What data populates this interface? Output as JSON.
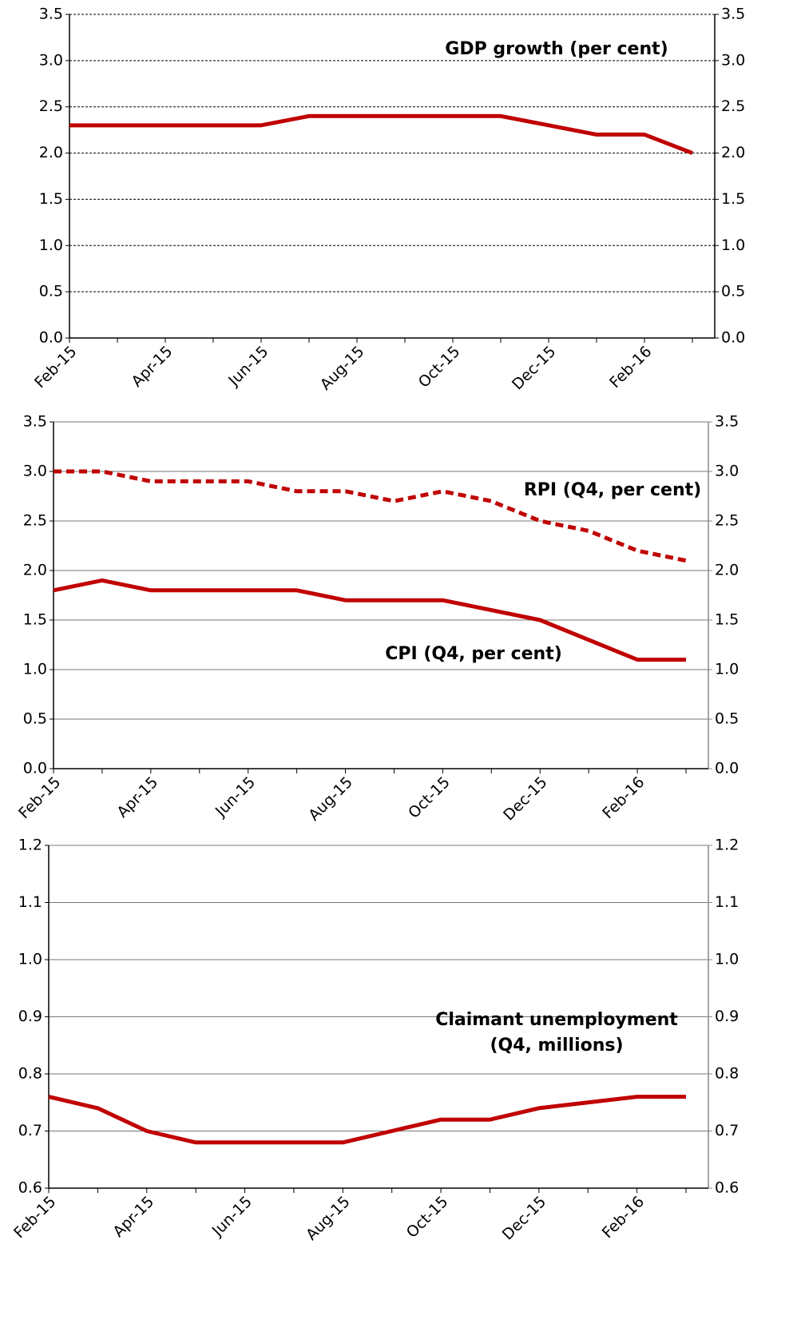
{
  "chart_data": [
    {
      "type": "line",
      "categories": [
        "Feb-15",
        null,
        "Apr-15",
        null,
        "Jun-15",
        null,
        "Aug-15",
        null,
        "Oct-15",
        null,
        "Dec-15",
        null,
        "Feb-16",
        null
      ],
      "series": [
        {
          "name": "GDP growth (per cent)",
          "color": "#c00000",
          "dash": "solid",
          "values": [
            2.3,
            2.3,
            2.3,
            2.3,
            2.3,
            2.4,
            2.4,
            2.4,
            2.4,
            2.4,
            2.3,
            2.2,
            2.2,
            2.0
          ]
        }
      ],
      "ylim": [
        0,
        3.5
      ],
      "yticks": [
        {
          "value": 0,
          "label": "0.0"
        },
        0.5,
        {
          "value": 1,
          "label": "1.0"
        },
        1.5,
        {
          "value": 2,
          "label": "2.0"
        },
        2.5,
        {
          "value": 3,
          "label": "3.0"
        },
        3.5
      ],
      "y2lim": [
        0,
        3.5
      ],
      "y2ticks": [
        {
          "value": 0,
          "label": "0.0"
        },
        0.5,
        {
          "value": 1,
          "label": "1.0"
        },
        1.5,
        {
          "value": 2,
          "label": "2.0"
        },
        2.5,
        {
          "value": 3,
          "label": "3.0"
        },
        3.5
      ],
      "grid": "dashed"
    },
    {
      "type": "line",
      "categories": [
        "Feb-15",
        null,
        "Apr-15",
        null,
        "Jun-15",
        null,
        "Aug-15",
        null,
        "Oct-15",
        null,
        "Dec-15",
        null,
        "Feb-16",
        null
      ],
      "series": [
        {
          "name": "RPI (Q4, per cent)",
          "color": "#c00000",
          "dash": "dashed",
          "values": [
            3.0,
            3.0,
            2.9,
            2.9,
            2.9,
            2.8,
            2.8,
            2.7,
            2.8,
            2.7,
            2.5,
            2.4,
            2.2,
            2.1
          ]
        },
        {
          "name": "CPI (Q4, per cent)",
          "color": "#c00000",
          "dash": "solid",
          "values": [
            1.8,
            1.9,
            1.8,
            1.8,
            1.8,
            1.8,
            1.7,
            1.7,
            1.7,
            1.6,
            1.5,
            1.3,
            1.1,
            1.1
          ]
        }
      ],
      "ylim": [
        0,
        3.5
      ],
      "yticks": [
        {
          "value": 0,
          "label": "0.0"
        },
        0.5,
        {
          "value": 1,
          "label": "1.0"
        },
        1.5,
        {
          "value": 2,
          "label": "2.0"
        },
        2.5,
        {
          "value": 3,
          "label": "3.0"
        },
        3.5
      ],
      "y2lim": [
        0,
        3.5
      ],
      "y2ticks": [
        {
          "value": 0,
          "label": "0.0"
        },
        0.5,
        {
          "value": 1,
          "label": "1.0"
        },
        1.5,
        {
          "value": 2,
          "label": "2.0"
        },
        2.5,
        {
          "value": 3,
          "label": "3.0"
        },
        3.5
      ],
      "grid": "solid"
    },
    {
      "type": "line",
      "categories": [
        "Feb-15",
        null,
        "Apr-15",
        null,
        "Jun-15",
        null,
        "Aug-15",
        null,
        "Oct-15",
        null,
        "Dec-15",
        null,
        "Feb-16",
        null
      ],
      "series": [
        {
          "name": "Claimant unemployment\n(Q4, millions)",
          "color": "#c00000",
          "dash": "solid",
          "values": [
            0.76,
            0.74,
            0.7,
            0.68,
            0.68,
            0.68,
            0.68,
            0.7,
            0.72,
            0.72,
            0.74,
            0.75,
            0.76,
            0.76
          ]
        }
      ],
      "ylim": [
        0.6,
        1.2
      ],
      "yticks": [
        0.6,
        0.7,
        0.8,
        0.9,
        {
          "value": 1,
          "label": "1.0"
        },
        1.1,
        1.2
      ],
      "y2lim": [
        0.6,
        1.2
      ],
      "y2ticks": [
        0.6,
        0.7,
        0.8,
        0.9,
        {
          "value": 1,
          "label": "1.0"
        },
        1.1,
        1.2
      ],
      "grid": "solid"
    }
  ]
}
